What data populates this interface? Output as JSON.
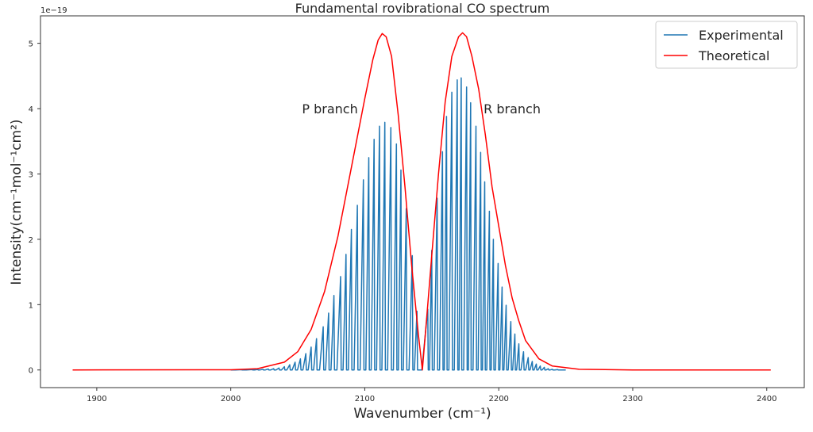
{
  "chart_data": {
    "type": "line",
    "title": "Fundamental rovibrational CO spectrum",
    "xlabel": "Wavenumber (cm⁻¹)",
    "ylabel": "Intensity(cm⁻¹mol⁻¹cm²)",
    "y_scale_label": "1e−19",
    "xlim": [
      1858,
      2428
    ],
    "ylim": [
      -0.27,
      5.42
    ],
    "xticks": [
      1900,
      2000,
      2100,
      2200,
      2300,
      2400
    ],
    "yticks": [
      0,
      1,
      2,
      3,
      4,
      5
    ],
    "grid": false,
    "legend": "top-right",
    "annotations": [
      {
        "text": "P branch",
        "x": 2074,
        "y": 4.0
      },
      {
        "text": "R branch",
        "x": 2210,
        "y": 4.0
      }
    ],
    "series": [
      {
        "name": "Experimental",
        "color": "#1f77b4",
        "style": "stick",
        "x": [
          2000,
          2008,
          2016,
          2020,
          2024,
          2028,
          2032,
          2036,
          2040,
          2044,
          2048,
          2052,
          2056,
          2060,
          2064,
          2069,
          2073,
          2077,
          2082,
          2086,
          2090,
          2094.5,
          2099,
          2103,
          2107,
          2111,
          2115,
          2119.5,
          2123.6,
          2127,
          2131,
          2135.5,
          2139,
          2147,
          2150,
          2154,
          2158,
          2161,
          2165,
          2169,
          2172,
          2176,
          2179,
          2183,
          2186.5,
          2189.5,
          2193,
          2196,
          2199.5,
          2202.5,
          2205.5,
          2209,
          2212,
          2215,
          2218.5,
          2222,
          2225,
          2228,
          2231,
          2234,
          2237,
          2240,
          2244,
          2250
        ],
        "y": [
          0.002,
          0.004,
          0.006,
          0.008,
          0.01,
          0.015,
          0.02,
          0.03,
          0.05,
          0.08,
          0.12,
          0.17,
          0.25,
          0.35,
          0.48,
          0.66,
          0.87,
          1.14,
          1.43,
          1.77,
          2.15,
          2.52,
          2.91,
          3.25,
          3.53,
          3.73,
          3.79,
          3.71,
          3.46,
          3.06,
          2.47,
          1.75,
          0.9,
          0.93,
          1.83,
          2.63,
          3.34,
          3.88,
          4.25,
          4.44,
          4.47,
          4.33,
          4.09,
          3.73,
          3.33,
          2.88,
          2.43,
          2.0,
          1.63,
          1.27,
          0.99,
          0.74,
          0.55,
          0.4,
          0.28,
          0.19,
          0.13,
          0.09,
          0.06,
          0.04,
          0.02,
          0.01,
          0.005,
          0
        ]
      },
      {
        "name": "Theoretical",
        "color": "#ff0000",
        "style": "line",
        "x": [
          1882,
          2000,
          2020,
          2040,
          2050,
          2060,
          2070,
          2080,
          2090,
          2100,
          2106,
          2110,
          2113,
          2116,
          2120,
          2125,
          2130,
          2135,
          2140,
          2143,
          2147,
          2150,
          2155,
          2160,
          2165,
          2170,
          2173,
          2176,
          2180,
          2185,
          2190,
          2195,
          2200,
          2205,
          2210,
          2215,
          2220,
          2230,
          2240,
          2260,
          2300,
          2403
        ],
        "y": [
          0,
          0.003,
          0.02,
          0.12,
          0.28,
          0.62,
          1.2,
          2.05,
          3.1,
          4.15,
          4.75,
          5.05,
          5.15,
          5.1,
          4.8,
          3.9,
          2.8,
          1.6,
          0.55,
          0,
          1.0,
          1.75,
          3.0,
          4.1,
          4.8,
          5.1,
          5.16,
          5.1,
          4.8,
          4.3,
          3.6,
          2.8,
          2.2,
          1.6,
          1.1,
          0.75,
          0.45,
          0.17,
          0.06,
          0.01,
          0,
          0
        ]
      }
    ]
  }
}
